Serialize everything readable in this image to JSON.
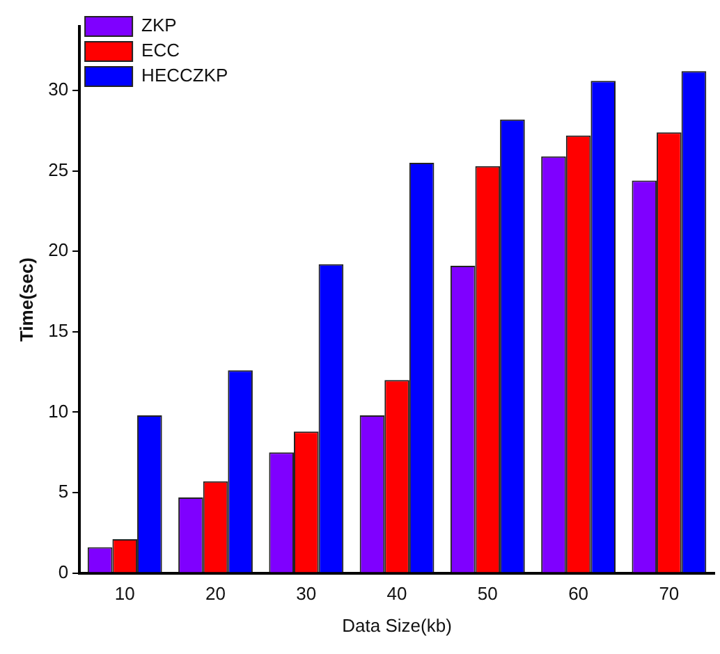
{
  "chart_data": {
    "type": "bar",
    "xlabel": "Data Size(kb)",
    "ylabel": "Time(sec)",
    "categories": [
      "10",
      "20",
      "30",
      "40",
      "50",
      "60",
      "70"
    ],
    "series": [
      {
        "name": "ZKP",
        "color": "#7f00ff",
        "values": [
          1.6,
          4.7,
          7.5,
          9.8,
          19.1,
          25.9,
          24.4
        ]
      },
      {
        "name": "ECC",
        "color": "#ff0000",
        "values": [
          2.1,
          5.7,
          8.8,
          12.0,
          25.3,
          27.2,
          27.4
        ]
      },
      {
        "name": "HECCZKP",
        "color": "#0000ff",
        "values": [
          9.8,
          12.6,
          19.2,
          25.5,
          28.2,
          30.6,
          31.2
        ]
      }
    ],
    "ylim": [
      0,
      34
    ],
    "yticks": [
      0,
      5,
      10,
      15,
      20,
      25,
      30
    ],
    "grid": false,
    "legend": "top left"
  }
}
